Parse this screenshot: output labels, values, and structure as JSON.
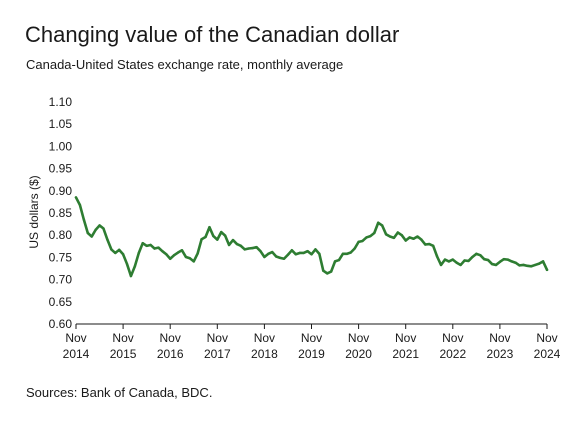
{
  "header": {
    "title": "Changing value of the Canadian dollar",
    "subtitle": "Canada-United States exchange rate, monthly average"
  },
  "footer": {
    "source": "Sources: Bank of Canada, BDC."
  },
  "colors": {
    "line": "#2e7d32",
    "axis": "#1a1a1a",
    "text": "#1a1a1a"
  },
  "chart_data": {
    "type": "line",
    "title": "Changing value of the Canadian dollar",
    "subtitle": "Canada-United States exchange rate, monthly average",
    "xlabel": "",
    "ylabel": "US dollars ($)",
    "ylim": [
      0.6,
      1.1
    ],
    "yticks": [
      "0.60",
      "0.65",
      "0.70",
      "0.75",
      "0.80",
      "0.85",
      "0.90",
      "0.95",
      "1.00",
      "1.05",
      "1.10"
    ],
    "xticks": [
      {
        "month": "Nov",
        "year": "2014"
      },
      {
        "month": "Nov",
        "year": "2015"
      },
      {
        "month": "Nov",
        "year": "2016"
      },
      {
        "month": "Nov",
        "year": "2017"
      },
      {
        "month": "Nov",
        "year": "2018"
      },
      {
        "month": "Nov",
        "year": "2019"
      },
      {
        "month": "Nov",
        "year": "2020"
      },
      {
        "month": "Nov",
        "year": "2021"
      },
      {
        "month": "Nov",
        "year": "2022"
      },
      {
        "month": "Nov",
        "year": "2023"
      },
      {
        "month": "Nov",
        "year": "2024"
      }
    ],
    "x_start": "2014-11",
    "x_end": "2024-11",
    "grid": false,
    "series": [
      {
        "name": "",
        "values": [
          0.885,
          0.868,
          0.835,
          0.805,
          0.797,
          0.812,
          0.822,
          0.815,
          0.79,
          0.768,
          0.76,
          0.767,
          0.757,
          0.735,
          0.708,
          0.73,
          0.76,
          0.782,
          0.776,
          0.778,
          0.77,
          0.772,
          0.764,
          0.757,
          0.747,
          0.755,
          0.761,
          0.766,
          0.751,
          0.748,
          0.741,
          0.759,
          0.791,
          0.796,
          0.818,
          0.798,
          0.79,
          0.807,
          0.799,
          0.778,
          0.789,
          0.78,
          0.776,
          0.768,
          0.77,
          0.771,
          0.773,
          0.764,
          0.751,
          0.758,
          0.762,
          0.752,
          0.749,
          0.747,
          0.756,
          0.766,
          0.757,
          0.76,
          0.76,
          0.764,
          0.757,
          0.768,
          0.758,
          0.72,
          0.714,
          0.718,
          0.741,
          0.744,
          0.758,
          0.758,
          0.761,
          0.77,
          0.785,
          0.787,
          0.795,
          0.798,
          0.805,
          0.828,
          0.822,
          0.802,
          0.797,
          0.794,
          0.806,
          0.8,
          0.788,
          0.795,
          0.792,
          0.797,
          0.79,
          0.779,
          0.78,
          0.776,
          0.752,
          0.733,
          0.745,
          0.741,
          0.745,
          0.738,
          0.733,
          0.743,
          0.742,
          0.751,
          0.758,
          0.755,
          0.746,
          0.744,
          0.735,
          0.733,
          0.74,
          0.746,
          0.745,
          0.741,
          0.738,
          0.732,
          0.733,
          0.731,
          0.73,
          0.733,
          0.736,
          0.741,
          0.722
        ]
      }
    ]
  }
}
